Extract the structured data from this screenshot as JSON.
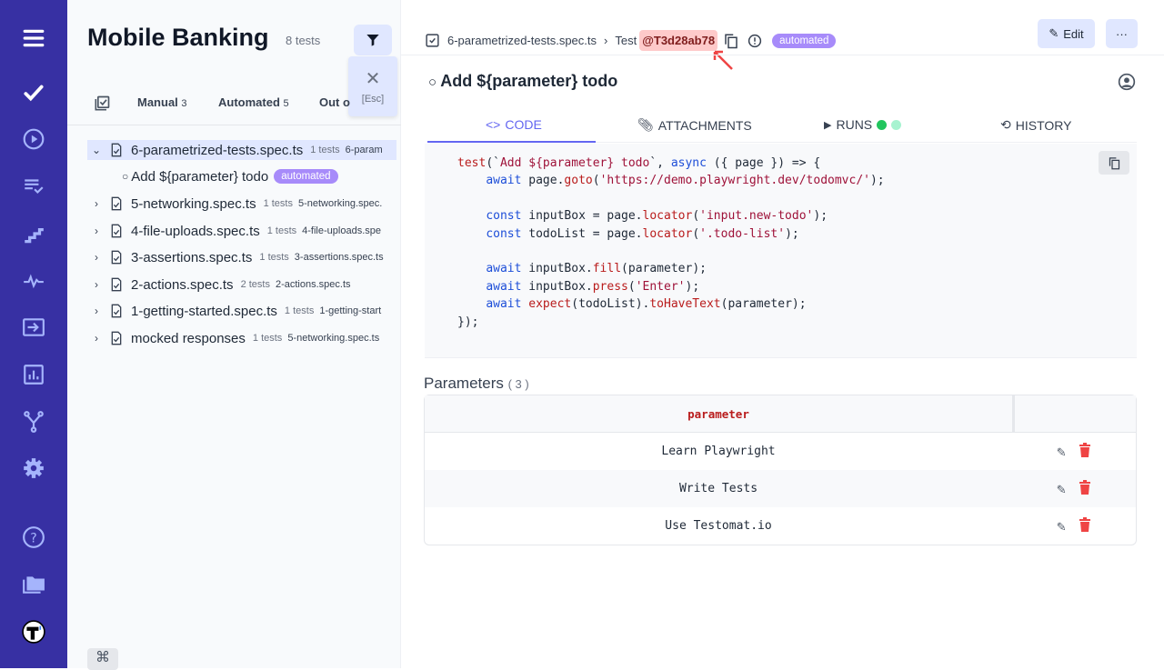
{
  "colors": {
    "rail": "#3730a3",
    "accent": "#6366f1",
    "badge": "#a78bfa",
    "test_id_bg": "#fecaca"
  },
  "rail": {
    "icons": [
      "menu-icon",
      "check-icon",
      "play-circle-icon",
      "list-check-icon",
      "steps-icon",
      "pulse-icon",
      "import-icon",
      "chart-icon",
      "branch-icon",
      "gear-icon",
      "help-icon",
      "folder-icon",
      "testomat-logo"
    ]
  },
  "tree": {
    "title": "Mobile Banking",
    "count": "8 tests",
    "esc": "[Esc]",
    "tabs": [
      {
        "label": "Manual",
        "count": "3"
      },
      {
        "label": "Automated",
        "count": "5"
      },
      {
        "label": "Out o"
      }
    ],
    "items": [
      {
        "name": "6-parametrized-tests.spec.ts",
        "count": "1 tests",
        "path": "6-param"
      },
      {
        "name": "5-networking.spec.ts",
        "count": "1 tests",
        "path": "5-networking.spec."
      },
      {
        "name": "4-file-uploads.spec.ts",
        "count": "1 tests",
        "path": "4-file-uploads.spe"
      },
      {
        "name": "3-assertions.spec.ts",
        "count": "1 tests",
        "path": "3-assertions.spec.ts"
      },
      {
        "name": "2-actions.spec.ts",
        "count": "2 tests",
        "path": "2-actions.spec.ts"
      },
      {
        "name": "1-getting-started.spec.ts",
        "count": "1 tests",
        "path": "1-getting-start"
      },
      {
        "name": "mocked responses",
        "count": "1 tests",
        "path": "5-networking.spec.ts"
      }
    ],
    "child": {
      "name": "Add ${parameter} todo",
      "badge": "automated"
    },
    "cmd": "⌘"
  },
  "main": {
    "breadcrumb": {
      "file": "6-parametrized-tests.spec.ts",
      "sep": "›",
      "test": "Test",
      "id": "@T3d28ab78",
      "badge": "automated"
    },
    "edit": "Edit",
    "more": "···",
    "title": "Add ${parameter} todo",
    "tabs": {
      "code": "CODE",
      "attachments": "ATTACHMENTS",
      "runs": "RUNS",
      "history": "HISTORY"
    },
    "code": [
      [
        [
          "fn",
          "test"
        ],
        [
          "",
          "(`"
        ],
        [
          "st",
          "Add ${parameter} todo"
        ],
        [
          "",
          "`, "
        ],
        [
          "kw",
          "async"
        ],
        [
          "",
          " ({ page }) => {"
        ]
      ],
      [
        [
          "",
          "    "
        ],
        [
          "kw",
          "await"
        ],
        [
          "",
          " page."
        ],
        [
          "fn",
          "goto"
        ],
        [
          "",
          "("
        ],
        [
          "st",
          "'https://demo.playwright.dev/todomvc/'"
        ],
        [
          "",
          ");"
        ]
      ],
      [],
      [
        [
          "",
          "    "
        ],
        [
          "kw",
          "const"
        ],
        [
          "",
          " inputBox = page."
        ],
        [
          "fn",
          "locator"
        ],
        [
          "",
          "("
        ],
        [
          "st",
          "'input.new-todo'"
        ],
        [
          "",
          ");"
        ]
      ],
      [
        [
          "",
          "    "
        ],
        [
          "kw",
          "const"
        ],
        [
          "",
          " todoList = page."
        ],
        [
          "fn",
          "locator"
        ],
        [
          "",
          "("
        ],
        [
          "st",
          "'.todo-list'"
        ],
        [
          "",
          ");"
        ]
      ],
      [],
      [
        [
          "",
          "    "
        ],
        [
          "kw",
          "await"
        ],
        [
          "",
          " inputBox."
        ],
        [
          "fn",
          "fill"
        ],
        [
          "",
          "(parameter);"
        ]
      ],
      [
        [
          "",
          "    "
        ],
        [
          "kw",
          "await"
        ],
        [
          "",
          " inputBox."
        ],
        [
          "fn",
          "press"
        ],
        [
          "",
          "("
        ],
        [
          "st",
          "'Enter'"
        ],
        [
          "",
          ");"
        ]
      ],
      [
        [
          "",
          "    "
        ],
        [
          "kw",
          "await"
        ],
        [
          "",
          ""
        ],
        [
          "fn",
          " expect"
        ],
        [
          "",
          "(todoList)."
        ],
        [
          "fn",
          "toHaveText"
        ],
        [
          "",
          "(parameter);"
        ]
      ],
      [
        [
          "",
          "});"
        ]
      ]
    ],
    "params": {
      "label": "Parameters",
      "count": "( 3 )",
      "header": "parameter",
      "rows": [
        "Learn Playwright",
        "Write Tests",
        "Use Testomat.io"
      ]
    }
  }
}
